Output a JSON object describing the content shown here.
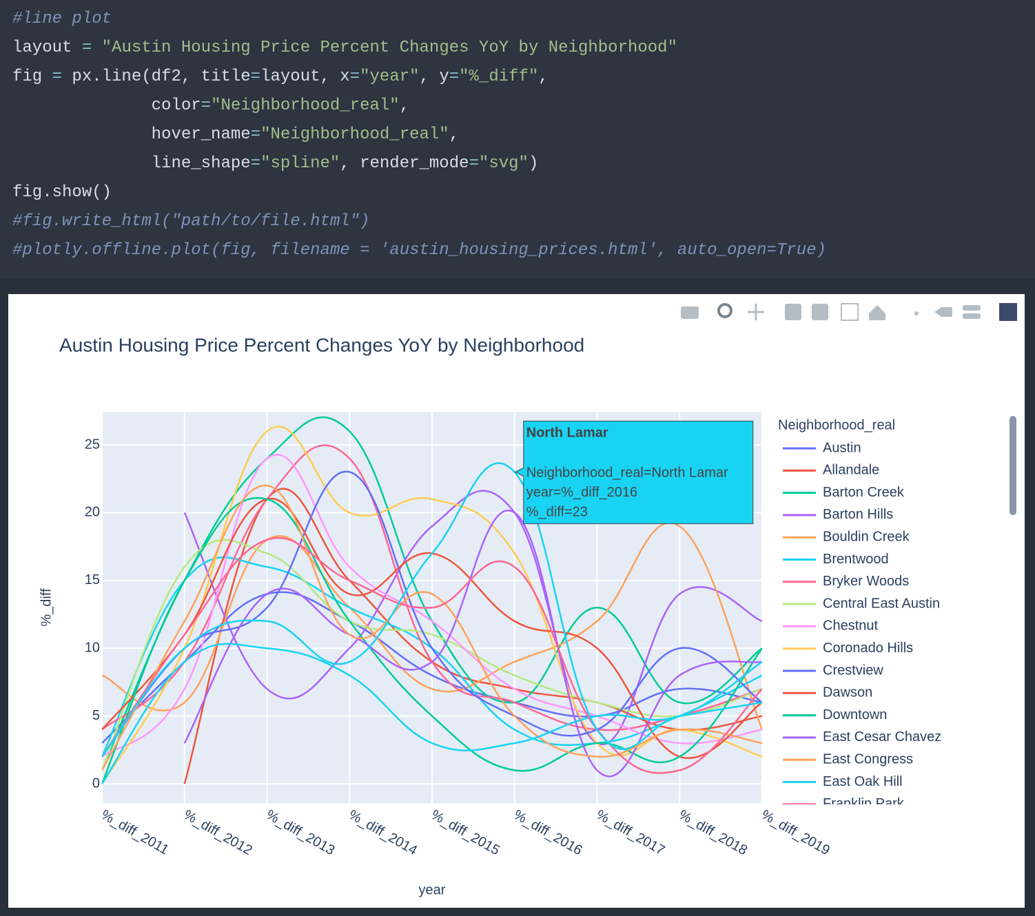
{
  "code": {
    "lines": [
      "#line plot",
      "layout = \"Austin Housing Price Percent Changes YoY by Neighborhood\"",
      "fig = px.line(df2, title=layout, x=\"year\", y=\"%_diff\",",
      "              color=\"Neighborhood_real\",",
      "              hover_name=\"Neighborhood_real\",",
      "              line_shape=\"spline\", render_mode=\"svg\")",
      "fig.show()",
      "#fig.write_html(\"path/to/file.html\")",
      "#plotly.offline.plot(fig, filename = 'austin_housing_prices.html', auto_open=True)"
    ]
  },
  "chart_data": {
    "type": "line",
    "title": "Austin Housing Price Percent Changes YoY by Neighborhood",
    "x_label": "year",
    "y_label": "%_diff",
    "legend_title": "Neighborhood_real",
    "categories": [
      "%_diff_2011",
      "%_diff_2012",
      "%_diff_2013",
      "%_diff_2014",
      "%_diff_2015",
      "%_diff_2016",
      "%_diff_2017",
      "%_diff_2018",
      "%_diff_2019"
    ],
    "ylim": [
      -1.42,
      27.44
    ],
    "yticks": [
      0,
      5,
      10,
      15,
      20,
      25
    ],
    "grid": true,
    "line_shape": "spline",
    "series": [
      {
        "name": "Austin",
        "color": "#636efa",
        "values": [
          3,
          9,
          14,
          12,
          8,
          6,
          5,
          7,
          6
        ]
      },
      {
        "name": "Allandale",
        "color": "#EF553B",
        "values": [
          null,
          0,
          21,
          15,
          9,
          7,
          6,
          4,
          5
        ]
      },
      {
        "name": "Barton Creek",
        "color": "#00cc96",
        "values": [
          1,
          15,
          24,
          26,
          12,
          6,
          13,
          6,
          10
        ]
      },
      {
        "name": "Barton Hills",
        "color": "#ab63fa",
        "values": [
          null,
          20,
          7,
          10,
          19,
          20,
          3,
          14,
          12
        ]
      },
      {
        "name": "Bouldin Creek",
        "color": "#FFA15A",
        "values": [
          8,
          6,
          18,
          13,
          7,
          9,
          12,
          19,
          4
        ]
      },
      {
        "name": "Brentwood",
        "color": "#19d3f3",
        "values": [
          2,
          15,
          16,
          13,
          10,
          4,
          3,
          5,
          8
        ]
      },
      {
        "name": "Bryker Woods",
        "color": "#FF6692",
        "values": [
          4,
          9,
          21,
          24,
          9,
          6,
          4,
          5,
          7
        ]
      },
      {
        "name": "Central East Austin",
        "color": "#B6E880",
        "values": [
          1,
          16,
          17,
          12,
          11,
          8,
          6,
          5,
          7
        ]
      },
      {
        "name": "Chestnut",
        "color": "#FF97FF",
        "values": [
          2,
          7,
          24,
          16,
          12,
          7,
          5,
          3,
          4
        ]
      },
      {
        "name": "Coronado Hills",
        "color": "#FECB52",
        "values": [
          0,
          10,
          26,
          20,
          21,
          17,
          3,
          4,
          2
        ]
      },
      {
        "name": "Crestview",
        "color": "#636efa",
        "values": [
          2,
          10,
          13,
          23,
          10,
          5,
          4,
          10,
          6
        ]
      },
      {
        "name": "Dawson",
        "color": "#EF553B",
        "values": [
          4,
          11,
          21,
          14,
          17,
          12,
          10,
          2,
          6
        ]
      },
      {
        "name": "Downtown",
        "color": "#00cc96",
        "values": [
          0,
          15,
          21,
          12,
          5,
          1,
          3,
          2,
          10
        ]
      },
      {
        "name": "East Cesar Chavez",
        "color": "#ab63fa",
        "values": [
          null,
          3,
          14,
          11,
          9,
          20,
          1,
          8,
          9
        ]
      },
      {
        "name": "East Congress",
        "color": "#FFA15A",
        "values": [
          1,
          12,
          22,
          11,
          14,
          5,
          2,
          4,
          3
        ]
      },
      {
        "name": "East Oak Hill",
        "color": "#19d3f3",
        "values": [
          0,
          9,
          10,
          8,
          3,
          3,
          5,
          5,
          9
        ]
      },
      {
        "name": "Franklin Park",
        "color": "#FF6692",
        "values": [
          2,
          11,
          18,
          15,
          13,
          16,
          4,
          1,
          7
        ]
      },
      {
        "name": "North Lamar",
        "color": "#19d3f3",
        "values": [
          2,
          10,
          12,
          9,
          17,
          23,
          4,
          5,
          6
        ]
      }
    ],
    "tooltip": {
      "title": "North Lamar",
      "x": "%_diff_2016",
      "lines": [
        "Neighborhood_real=North Lamar",
        "year=%_diff_2016",
        "%_diff=23"
      ]
    }
  }
}
